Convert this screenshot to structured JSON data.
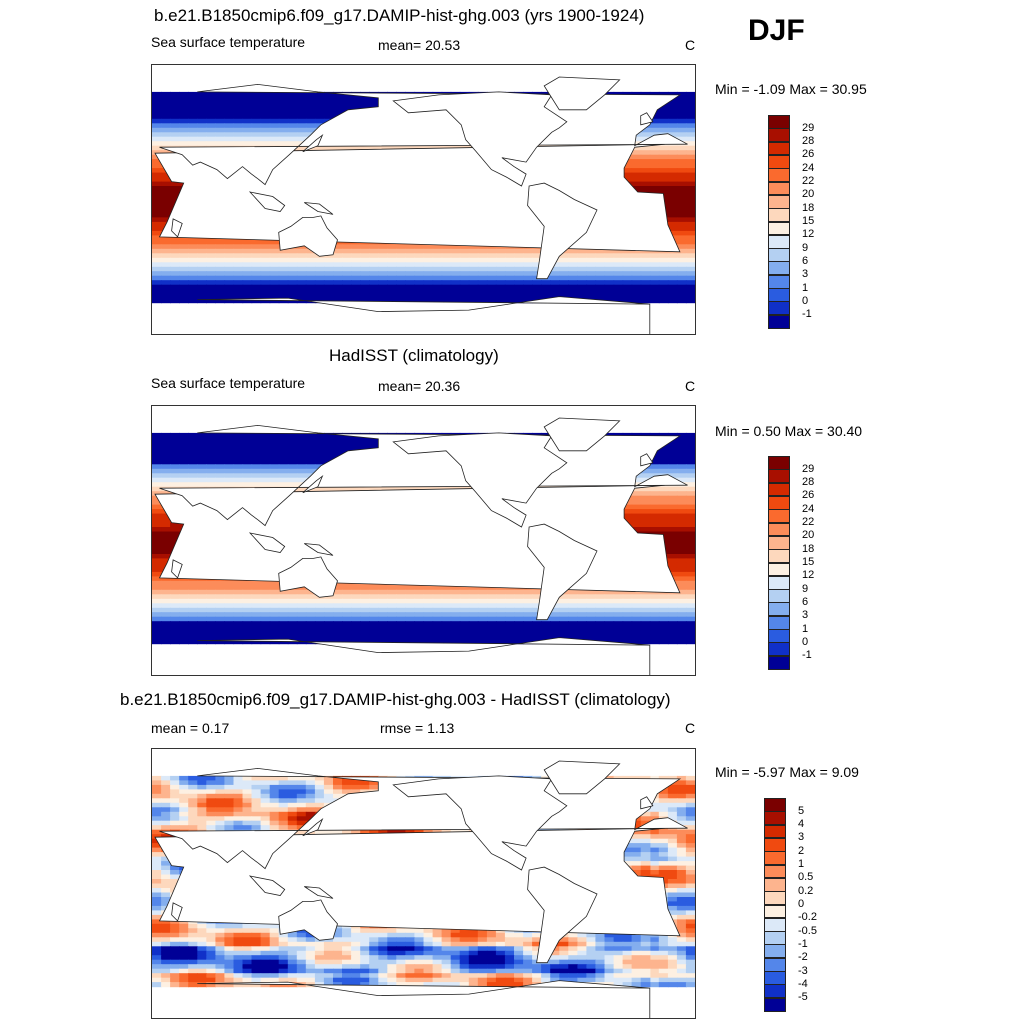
{
  "season": "DJF",
  "panels": [
    {
      "title": "b.e21.B1850cmip6.f09_g17.DAMIP-hist-ghg.003 (yrs 1900-1924)",
      "left_label": "Sea surface temperature",
      "mid_label": "mean=  20.53",
      "unit": "C",
      "minmax": "Min =  -1.09 Max =  30.95",
      "kind": "sst"
    },
    {
      "title": "HadISST (climatology)",
      "left_label": "Sea surface temperature",
      "mid_label": "mean=  20.36",
      "unit": "C",
      "minmax": "Min =   0.50 Max =  30.40",
      "kind": "sst"
    },
    {
      "title": "b.e21.B1850cmip6.f09_g17.DAMIP-hist-ghg.003 - HadISST (climatology)",
      "left_label": "mean =   0.17",
      "mid_label": "rmse =   1.13",
      "unit": "C",
      "minmax": "Min =  -5.97 Max =   9.09",
      "kind": "diff"
    }
  ],
  "colorbars": {
    "sst": {
      "labels": [
        "29",
        "28",
        "26",
        "24",
        "22",
        "20",
        "18",
        "15",
        "12",
        "9",
        "6",
        "3",
        "1",
        "0",
        "-1"
      ],
      "colors": [
        "#7a0000",
        "#a80f00",
        "#d42a00",
        "#f04a10",
        "#fa6a2e",
        "#fc8c5a",
        "#fdb48e",
        "#fdd8bd",
        "#fdf0e2",
        "#dce9f8",
        "#b4d0f2",
        "#84aeee",
        "#5486ea",
        "#2a5ce0",
        "#1030c8",
        "#000096"
      ]
    },
    "diff": {
      "labels": [
        "5",
        "4",
        "3",
        "2",
        "1",
        "0.5",
        "0.2",
        "0",
        "-0.2",
        "-0.5",
        "-1",
        "-2",
        "-3",
        "-4",
        "-5"
      ],
      "colors": [
        "#7a0000",
        "#a80f00",
        "#d42a00",
        "#f04a10",
        "#fa6a2e",
        "#fc8c5a",
        "#fdb48e",
        "#fdd8bd",
        "#fdf0e2",
        "#dce9f8",
        "#b4d0f2",
        "#84aeee",
        "#5486ea",
        "#2a5ce0",
        "#1030c8",
        "#000096"
      ]
    }
  }
}
